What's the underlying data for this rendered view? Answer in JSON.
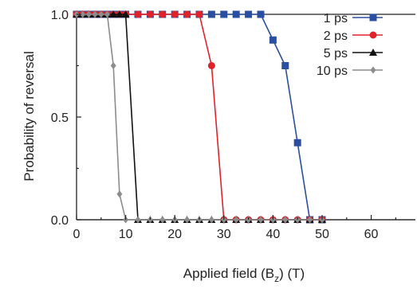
{
  "chart_data": {
    "type": "line",
    "xlabel_main": "Applied field (B",
    "xlabel_sub": "z",
    "xlabel_tail": ") (T)",
    "ylabel": "Probability of reversal",
    "xlim": [
      0,
      69
    ],
    "ylim": [
      0,
      1
    ],
    "xticks": [
      "0",
      "10",
      "20",
      "30",
      "40",
      "50",
      "60"
    ],
    "yticks": [
      "0.0",
      "0.5",
      "1.0"
    ],
    "grid": false,
    "legend_position": "top-right",
    "series": [
      {
        "name": "1 ps",
        "color": "#2b4fa0",
        "marker": "square",
        "x": [
          0,
          1.25,
          2.5,
          3.75,
          5,
          6.25,
          7.5,
          8.75,
          10,
          12.5,
          15,
          17.5,
          20,
          22.5,
          25,
          27.5,
          30,
          32.5,
          35,
          37.5,
          40,
          42.5,
          45,
          47.5,
          50
        ],
        "y": [
          1,
          1,
          1,
          1,
          1,
          1,
          1,
          1,
          1,
          1,
          1,
          1,
          1,
          1,
          1,
          1,
          1,
          1,
          1,
          1,
          0.875,
          0.75,
          0.375,
          0,
          0
        ]
      },
      {
        "name": "2 ps",
        "color": "#e0232b",
        "marker": "circle",
        "x": [
          0,
          1.25,
          2.5,
          3.75,
          5,
          6.25,
          7.5,
          8.75,
          10,
          12.5,
          15,
          17.5,
          20,
          22.5,
          25,
          27.5,
          30,
          32.5,
          35,
          37.5,
          40,
          42.5,
          45,
          47.5,
          50
        ],
        "y": [
          1,
          1,
          1,
          1,
          1,
          1,
          1,
          1,
          1,
          1,
          1,
          1,
          1,
          1,
          1,
          0.75,
          0,
          0,
          0,
          0,
          0,
          0,
          0,
          0,
          0
        ]
      },
      {
        "name": "5 ps",
        "color": "#111111",
        "marker": "triangle",
        "x": [
          0,
          1.25,
          2.5,
          3.75,
          5,
          6.25,
          7.5,
          8.75,
          10,
          12.5,
          15,
          17.5,
          20,
          22.5,
          25,
          27.5,
          30,
          32.5,
          35,
          37.5,
          40,
          42.5,
          45,
          47.5,
          50
        ],
        "y": [
          1,
          1,
          1,
          1,
          1,
          1,
          1,
          1,
          1,
          0,
          0,
          0,
          0,
          0,
          0,
          0,
          0,
          0,
          0,
          0,
          0,
          0,
          0,
          0,
          0
        ]
      },
      {
        "name": "10 ps",
        "color": "#8c8c8c",
        "marker": "diamond",
        "x": [
          0,
          1.25,
          2.5,
          3.75,
          5,
          6.25,
          7.5,
          8.75,
          10,
          12.5,
          15,
          17.5,
          20,
          22.5,
          25,
          27.5,
          30,
          32.5,
          35,
          37.5,
          40,
          42.5,
          45,
          47.5,
          50
        ],
        "y": [
          1,
          1,
          1,
          1,
          1,
          1,
          0.75,
          0.125,
          0,
          0,
          0,
          0,
          0,
          0,
          0,
          0,
          0,
          0,
          0,
          0,
          0,
          0,
          0,
          0,
          0
        ]
      }
    ]
  }
}
